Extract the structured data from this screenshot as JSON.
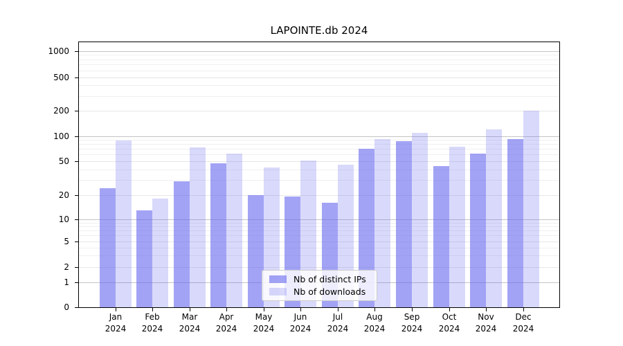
{
  "title": "LAPOINTE.db 2024",
  "chart_data": {
    "type": "bar",
    "title": "LAPOINTE.db 2024",
    "categories": [
      "Jan",
      "Feb",
      "Mar",
      "Apr",
      "May",
      "Jun",
      "Jul",
      "Aug",
      "Sep",
      "Oct",
      "Nov",
      "Dec"
    ],
    "year_label": "2024",
    "series": [
      {
        "name": "Nb of distinct IPs",
        "color": "rgba(102,102,238,0.6)",
        "values": [
          24,
          13,
          29,
          47,
          20,
          19,
          16,
          70,
          87,
          44,
          61,
          92
        ]
      },
      {
        "name": "Nb of downloads",
        "color": "rgba(102,102,238,0.25)",
        "values": [
          88,
          18,
          73,
          62,
          42,
          51,
          45,
          93,
          110,
          75,
          120,
          200
        ]
      }
    ],
    "y_ticks": [
      1000,
      500,
      200,
      100,
      50,
      20,
      10,
      5,
      2,
      1,
      0
    ],
    "yscale": "log-like with 0 baseline",
    "ylim": [
      0,
      1290
    ],
    "grid": true,
    "legend_position": "lower center"
  },
  "colors": {
    "bar_dark": "rgba(102,102,238,0.6)",
    "bar_light": "rgba(102,102,238,0.25)",
    "grid_major": "#c3c3c3",
    "grid_labeled": "#e6e6e6",
    "grid_minor": "#efefef",
    "axis": "#000000",
    "legend_border": "#cccccc"
  }
}
